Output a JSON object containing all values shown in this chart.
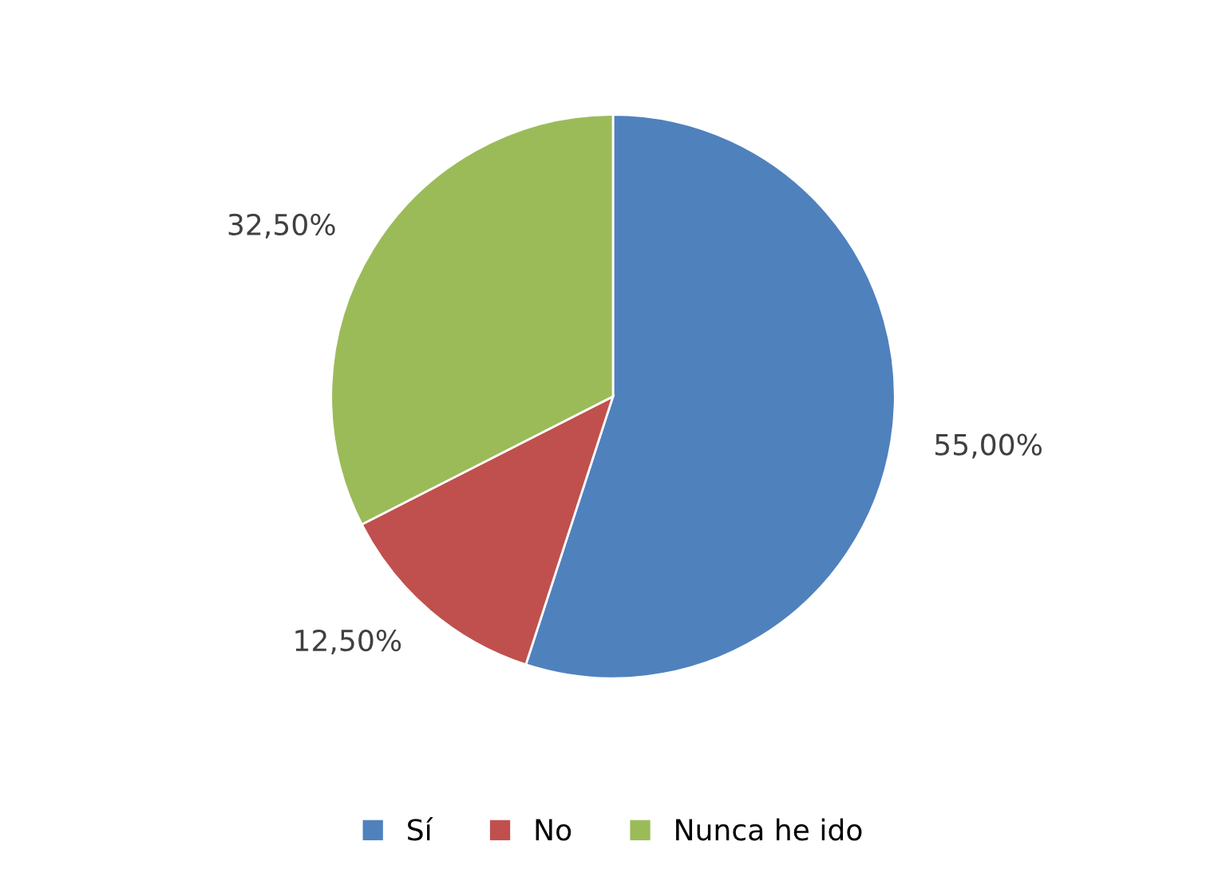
{
  "chart_data": {
    "type": "pie",
    "categories": [
      "Sí",
      "No",
      "Nunca he ido"
    ],
    "values": [
      55,
      12.5,
      32.5
    ],
    "colors": [
      "#4f81bd",
      "#c0504d",
      "#9bbb59"
    ],
    "value_labels": [
      "55,00%",
      "12,50%",
      "32,50%"
    ],
    "legend": "bottom"
  }
}
